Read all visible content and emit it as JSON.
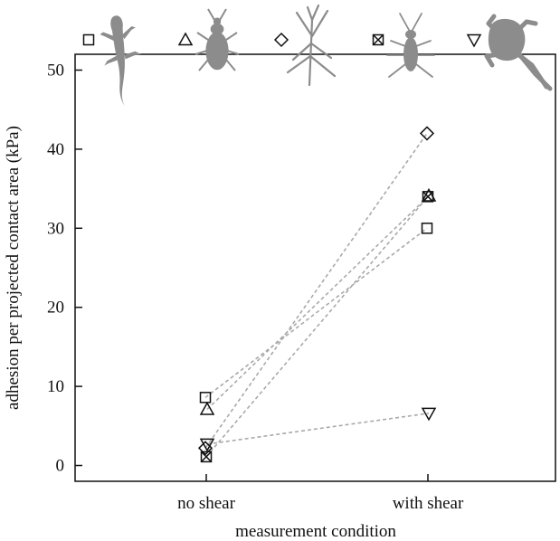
{
  "chart_data": {
    "type": "scatter",
    "xlabel": "measurement condition",
    "ylabel": "adhesion per projected contact area (kPa)",
    "categories": [
      "no shear",
      "with shear"
    ],
    "ylim": [
      -2,
      52
    ],
    "yticks": [
      0,
      10,
      20,
      30,
      40,
      50
    ],
    "grid": false,
    "series": [
      {
        "marker": "square",
        "animal": "gecko",
        "values": [
          8.6,
          30.0
        ]
      },
      {
        "marker": "triangle-up",
        "animal": "beetle",
        "values": [
          7.1,
          34.1
        ]
      },
      {
        "marker": "diamond",
        "animal": "stick insect",
        "values": [
          2.2,
          42.0
        ]
      },
      {
        "marker": "square-x",
        "animal": "cockroach",
        "values": [
          1.1,
          34.0
        ]
      },
      {
        "marker": "triangle-down",
        "animal": "tree frog",
        "values": [
          2.7,
          6.6
        ]
      }
    ],
    "connector_style": "dashed-grey"
  }
}
